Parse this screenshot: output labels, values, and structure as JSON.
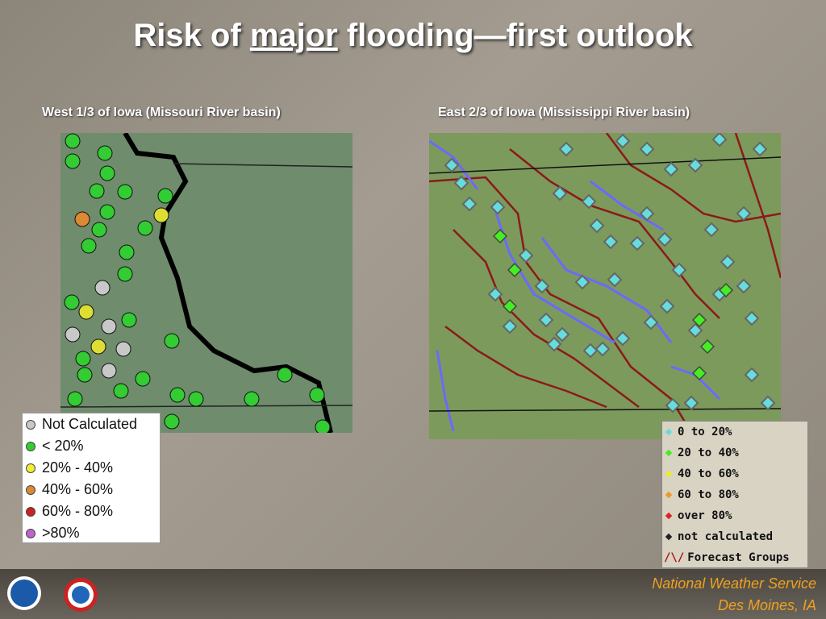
{
  "title": {
    "before": "Risk of ",
    "emphasis": "major",
    "after": " flooding—first outlook"
  },
  "left_panel": {
    "caption": "West 1/3 of Iowa (Missouri River basin)",
    "legend": [
      "Not Calculated",
      "< 20%",
      "20% - 40%",
      "40% - 60%",
      "60% - 80%",
      ">80%"
    ]
  },
  "right_panel": {
    "caption": "East 2/3 of Iowa (Mississippi River basin)",
    "legend": [
      "0 to 20%",
      "20 to 40%",
      "40 to 60%",
      "60 to 80%",
      "over 80%",
      "not calculated",
      "Forecast Groups"
    ]
  },
  "footer": {
    "organization": "National Weather Service",
    "office": "Des Moines, IA"
  }
}
